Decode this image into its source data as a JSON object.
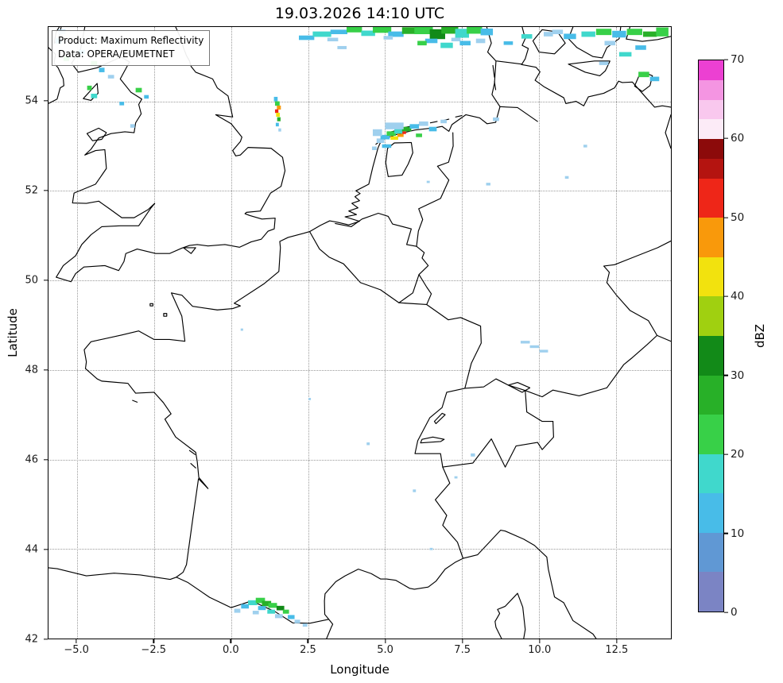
{
  "title": "19.03.2026 14:10 UTC",
  "annotation": {
    "line1": "Product: Maximum Reflectivity",
    "line2": "Data: OPERA/EUMETNET"
  },
  "axes": {
    "xlabel": "Longitude",
    "ylabel": "Latitude",
    "x_ticks": [
      {
        "value": -5.0,
        "label": "−5.0"
      },
      {
        "value": -2.5,
        "label": "−2.5"
      },
      {
        "value": 0.0,
        "label": "0.0"
      },
      {
        "value": 2.5,
        "label": "2.5"
      },
      {
        "value": 5.0,
        "label": "5.0"
      },
      {
        "value": 7.5,
        "label": "7.5"
      },
      {
        "value": 10.0,
        "label": "10.0"
      },
      {
        "value": 12.5,
        "label": "12.5"
      }
    ],
    "y_ticks": [
      {
        "value": 42,
        "label": "42"
      },
      {
        "value": 44,
        "label": "44"
      },
      {
        "value": 46,
        "label": "46"
      },
      {
        "value": 48,
        "label": "48"
      },
      {
        "value": 50,
        "label": "50"
      },
      {
        "value": 52,
        "label": "52"
      },
      {
        "value": 54,
        "label": "54"
      }
    ]
  },
  "map": {
    "lon_min": -5.93,
    "lon_max": 14.28,
    "lat_min": 42.0,
    "lat_max": 55.66
  },
  "colorbar": {
    "label": "dBZ",
    "min": 0,
    "max": 70,
    "ticks": [
      0,
      10,
      20,
      30,
      40,
      50,
      60,
      70
    ],
    "segments": [
      {
        "from": 0,
        "to": 5,
        "color": "#7b84c4"
      },
      {
        "from": 5,
        "to": 10,
        "color": "#6098d4"
      },
      {
        "from": 10,
        "to": 15,
        "color": "#48bce8"
      },
      {
        "from": 15,
        "to": 20,
        "color": "#40d8cc"
      },
      {
        "from": 20,
        "to": 25,
        "color": "#38d048"
      },
      {
        "from": 25,
        "to": 30,
        "color": "#28b028"
      },
      {
        "from": 30,
        "to": 35,
        "color": "#128a18"
      },
      {
        "from": 35,
        "to": 40,
        "color": "#a0d010"
      },
      {
        "from": 40,
        "to": 45,
        "color": "#f2e20e"
      },
      {
        "from": 45,
        "to": 50,
        "color": "#f9990b"
      },
      {
        "from": 50,
        "to": 55,
        "color": "#ee2618"
      },
      {
        "from": 55,
        "to": 57.5,
        "color": "#b41410"
      },
      {
        "from": 57.5,
        "to": 60,
        "color": "#8c0a0a"
      },
      {
        "from": 60,
        "to": 62.5,
        "color": "#fcebf7"
      },
      {
        "from": 62.5,
        "to": 65,
        "color": "#f9c8ee"
      },
      {
        "from": 65,
        "to": 67.5,
        "color": "#f495e2"
      },
      {
        "from": 67.5,
        "to": 70,
        "color": "#ec40d2"
      }
    ]
  },
  "radar_echoes": {
    "cell_format": [
      "lon_center",
      "lat_center",
      "width_deg",
      "height_deg",
      "color"
    ],
    "cells": [
      [
        2.45,
        55.42,
        0.5,
        0.1,
        "#48bce8"
      ],
      [
        2.95,
        55.5,
        0.6,
        0.12,
        "#40d8cc"
      ],
      [
        3.5,
        55.55,
        0.55,
        0.1,
        "#48bce8"
      ],
      [
        3.3,
        55.38,
        0.35,
        0.08,
        "#9fd0ee"
      ],
      [
        4.0,
        55.6,
        0.5,
        0.12,
        "#38d048"
      ],
      [
        4.45,
        55.52,
        0.45,
        0.12,
        "#40d8cc"
      ],
      [
        4.9,
        55.6,
        0.6,
        0.14,
        "#38d048"
      ],
      [
        5.35,
        55.5,
        0.5,
        0.12,
        "#48bce8"
      ],
      [
        5.8,
        55.58,
        0.5,
        0.15,
        "#28b028"
      ],
      [
        6.25,
        55.6,
        0.6,
        0.2,
        "#38d048"
      ],
      [
        6.7,
        55.5,
        0.5,
        0.22,
        "#128a18"
      ],
      [
        7.1,
        55.6,
        0.55,
        0.18,
        "#28b028"
      ],
      [
        7.5,
        55.52,
        0.45,
        0.2,
        "#40d8cc"
      ],
      [
        7.9,
        55.6,
        0.5,
        0.18,
        "#38d048"
      ],
      [
        8.3,
        55.55,
        0.4,
        0.15,
        "#48bce8"
      ],
      [
        6.5,
        55.35,
        0.4,
        0.1,
        "#48bce8"
      ],
      [
        7.3,
        55.38,
        0.3,
        0.08,
        "#9fd0ee"
      ],
      [
        5.1,
        55.42,
        0.3,
        0.08,
        "#9fd0ee"
      ],
      [
        6.2,
        55.3,
        0.3,
        0.1,
        "#38d048"
      ],
      [
        7.0,
        55.25,
        0.4,
        0.12,
        "#40d8cc"
      ],
      [
        7.6,
        55.3,
        0.35,
        0.1,
        "#48bce8"
      ],
      [
        8.1,
        55.35,
        0.3,
        0.1,
        "#9fd0ee"
      ],
      [
        3.6,
        55.2,
        0.3,
        0.07,
        "#9fd0ee"
      ],
      [
        9.0,
        55.3,
        0.3,
        0.08,
        "#48bce8"
      ],
      [
        9.6,
        55.45,
        0.35,
        0.1,
        "#40d8cc"
      ],
      [
        10.3,
        55.5,
        0.3,
        0.1,
        "#9fd0ee"
      ],
      [
        10.6,
        55.55,
        0.35,
        0.1,
        "#9fd0ee"
      ],
      [
        11.0,
        55.45,
        0.4,
        0.12,
        "#48bce8"
      ],
      [
        11.6,
        55.5,
        0.45,
        0.12,
        "#40d8cc"
      ],
      [
        12.1,
        55.55,
        0.5,
        0.14,
        "#38d048"
      ],
      [
        12.6,
        55.5,
        0.45,
        0.15,
        "#48bce8"
      ],
      [
        13.1,
        55.55,
        0.5,
        0.14,
        "#38d048"
      ],
      [
        13.6,
        55.5,
        0.45,
        0.12,
        "#28b028"
      ],
      [
        14.0,
        55.55,
        0.4,
        0.2,
        "#38d048"
      ],
      [
        12.3,
        55.3,
        0.35,
        0.1,
        "#9fd0ee"
      ],
      [
        13.3,
        55.2,
        0.35,
        0.1,
        "#48bce8"
      ],
      [
        12.8,
        55.05,
        0.4,
        0.1,
        "#40d8cc"
      ],
      [
        13.4,
        54.6,
        0.35,
        0.12,
        "#38d048"
      ],
      [
        13.75,
        54.5,
        0.3,
        0.1,
        "#48bce8"
      ],
      [
        12.1,
        54.85,
        0.3,
        0.08,
        "#9fd0ee"
      ],
      [
        4.85,
        53.12,
        0.25,
        0.1,
        "#9fd0ee"
      ],
      [
        5.0,
        53.2,
        0.3,
        0.1,
        "#48bce8"
      ],
      [
        5.2,
        53.28,
        0.3,
        0.1,
        "#38d048"
      ],
      [
        5.45,
        53.33,
        0.3,
        0.1,
        "#40d8cc"
      ],
      [
        5.3,
        53.18,
        0.25,
        0.08,
        "#f2e20e"
      ],
      [
        5.5,
        53.24,
        0.2,
        0.07,
        "#f9990b"
      ],
      [
        5.62,
        53.3,
        0.12,
        0.06,
        "#ee2618"
      ],
      [
        5.7,
        53.38,
        0.3,
        0.1,
        "#28b028"
      ],
      [
        5.95,
        53.44,
        0.3,
        0.1,
        "#48bce8"
      ],
      [
        6.25,
        53.5,
        0.3,
        0.1,
        "#9fd0ee"
      ],
      [
        6.55,
        53.38,
        0.25,
        0.1,
        "#48bce8"
      ],
      [
        6.1,
        53.24,
        0.2,
        0.08,
        "#38d048"
      ],
      [
        6.9,
        53.55,
        0.2,
        0.08,
        "#9fd0ee"
      ],
      [
        5.05,
        53.0,
        0.3,
        0.08,
        "#48bce8"
      ],
      [
        4.65,
        52.95,
        0.15,
        0.08,
        "#9fd0ee"
      ],
      [
        5.3,
        53.45,
        0.6,
        0.15,
        "#9fd0ee"
      ],
      [
        4.75,
        53.3,
        0.3,
        0.15,
        "#9fd0ee"
      ],
      [
        8.6,
        53.6,
        0.2,
        0.08,
        "#9fd0ee"
      ],
      [
        -4.45,
        54.85,
        0.2,
        0.1,
        "#38d048"
      ],
      [
        -4.2,
        54.7,
        0.18,
        0.1,
        "#48bce8"
      ],
      [
        -3.9,
        54.55,
        0.2,
        0.08,
        "#9fd0ee"
      ],
      [
        -4.6,
        54.3,
        0.15,
        0.1,
        "#38d048"
      ],
      [
        -4.45,
        54.12,
        0.2,
        0.1,
        "#40d8cc"
      ],
      [
        -3.55,
        53.95,
        0.15,
        0.08,
        "#48bce8"
      ],
      [
        -4.85,
        55.1,
        0.2,
        0.1,
        "#48bce8"
      ],
      [
        -5.35,
        54.95,
        0.18,
        0.1,
        "#38d048"
      ],
      [
        -5.6,
        55.35,
        0.2,
        0.12,
        "#48bce8"
      ],
      [
        -5.5,
        55.55,
        0.25,
        0.1,
        "#9fd0ee"
      ],
      [
        -3.0,
        54.25,
        0.2,
        0.1,
        "#38d048"
      ],
      [
        -2.75,
        54.1,
        0.15,
        0.08,
        "#48bce8"
      ],
      [
        -3.2,
        53.45,
        0.15,
        0.08,
        "#9fd0ee"
      ],
      [
        -4.1,
        55.35,
        0.15,
        0.08,
        "#9fd0ee"
      ],
      [
        1.45,
        54.05,
        0.12,
        0.1,
        "#48bce8"
      ],
      [
        1.5,
        53.95,
        0.15,
        0.1,
        "#38d048"
      ],
      [
        1.55,
        53.86,
        0.13,
        0.09,
        "#f9990b"
      ],
      [
        1.48,
        53.78,
        0.11,
        0.08,
        "#ee2618"
      ],
      [
        1.52,
        53.7,
        0.12,
        0.09,
        "#f2e20e"
      ],
      [
        1.55,
        53.6,
        0.11,
        0.09,
        "#28b028"
      ],
      [
        1.5,
        53.48,
        0.1,
        0.08,
        "#48bce8"
      ],
      [
        1.58,
        53.36,
        0.09,
        0.07,
        "#9fd0ee"
      ],
      [
        0.2,
        42.62,
        0.2,
        0.09,
        "#9fd0ee"
      ],
      [
        0.45,
        42.72,
        0.25,
        0.1,
        "#48bce8"
      ],
      [
        0.7,
        42.8,
        0.3,
        0.11,
        "#40d8cc"
      ],
      [
        0.95,
        42.85,
        0.3,
        0.12,
        "#38d048"
      ],
      [
        1.15,
        42.78,
        0.3,
        0.12,
        "#28b028"
      ],
      [
        1.0,
        42.68,
        0.25,
        0.09,
        "#48bce8"
      ],
      [
        1.35,
        42.74,
        0.28,
        0.11,
        "#38d048"
      ],
      [
        1.3,
        42.6,
        0.25,
        0.09,
        "#40d8cc"
      ],
      [
        1.6,
        42.68,
        0.25,
        0.1,
        "#128a18"
      ],
      [
        1.78,
        42.6,
        0.2,
        0.09,
        "#38d048"
      ],
      [
        1.55,
        42.5,
        0.25,
        0.09,
        "#9fd0ee"
      ],
      [
        1.95,
        42.48,
        0.22,
        0.09,
        "#48bce8"
      ],
      [
        2.15,
        42.38,
        0.18,
        0.08,
        "#9fd0ee"
      ],
      [
        0.8,
        42.58,
        0.2,
        0.08,
        "#9fd0ee"
      ],
      [
        2.4,
        42.3,
        0.15,
        0.07,
        "#9fd0ee"
      ],
      [
        9.55,
        48.62,
        0.3,
        0.06,
        "#9fd0ee"
      ],
      [
        9.85,
        48.52,
        0.3,
        0.06,
        "#9fd0ee"
      ],
      [
        10.15,
        48.42,
        0.28,
        0.06,
        "#9fd0ee"
      ],
      [
        7.85,
        46.1,
        0.14,
        0.07,
        "#9fd0ee"
      ],
      [
        4.45,
        46.35,
        0.1,
        0.06,
        "#9fd0ee"
      ],
      [
        5.95,
        45.3,
        0.1,
        0.06,
        "#9fd0ee"
      ],
      [
        8.35,
        52.15,
        0.14,
        0.06,
        "#9fd0ee"
      ],
      [
        10.9,
        52.3,
        0.12,
        0.06,
        "#9fd0ee"
      ],
      [
        11.5,
        53.0,
        0.12,
        0.06,
        "#9fd0ee"
      ],
      [
        2.55,
        47.35,
        0.08,
        0.05,
        "#9fd0ee"
      ],
      [
        0.35,
        48.9,
        0.08,
        0.05,
        "#9fd0ee"
      ],
      [
        6.5,
        44.0,
        0.1,
        0.05,
        "#9fd0ee"
      ],
      [
        6.4,
        52.2,
        0.1,
        0.05,
        "#9fd0ee"
      ],
      [
        7.3,
        45.6,
        0.1,
        0.05,
        "#9fd0ee"
      ]
    ]
  }
}
